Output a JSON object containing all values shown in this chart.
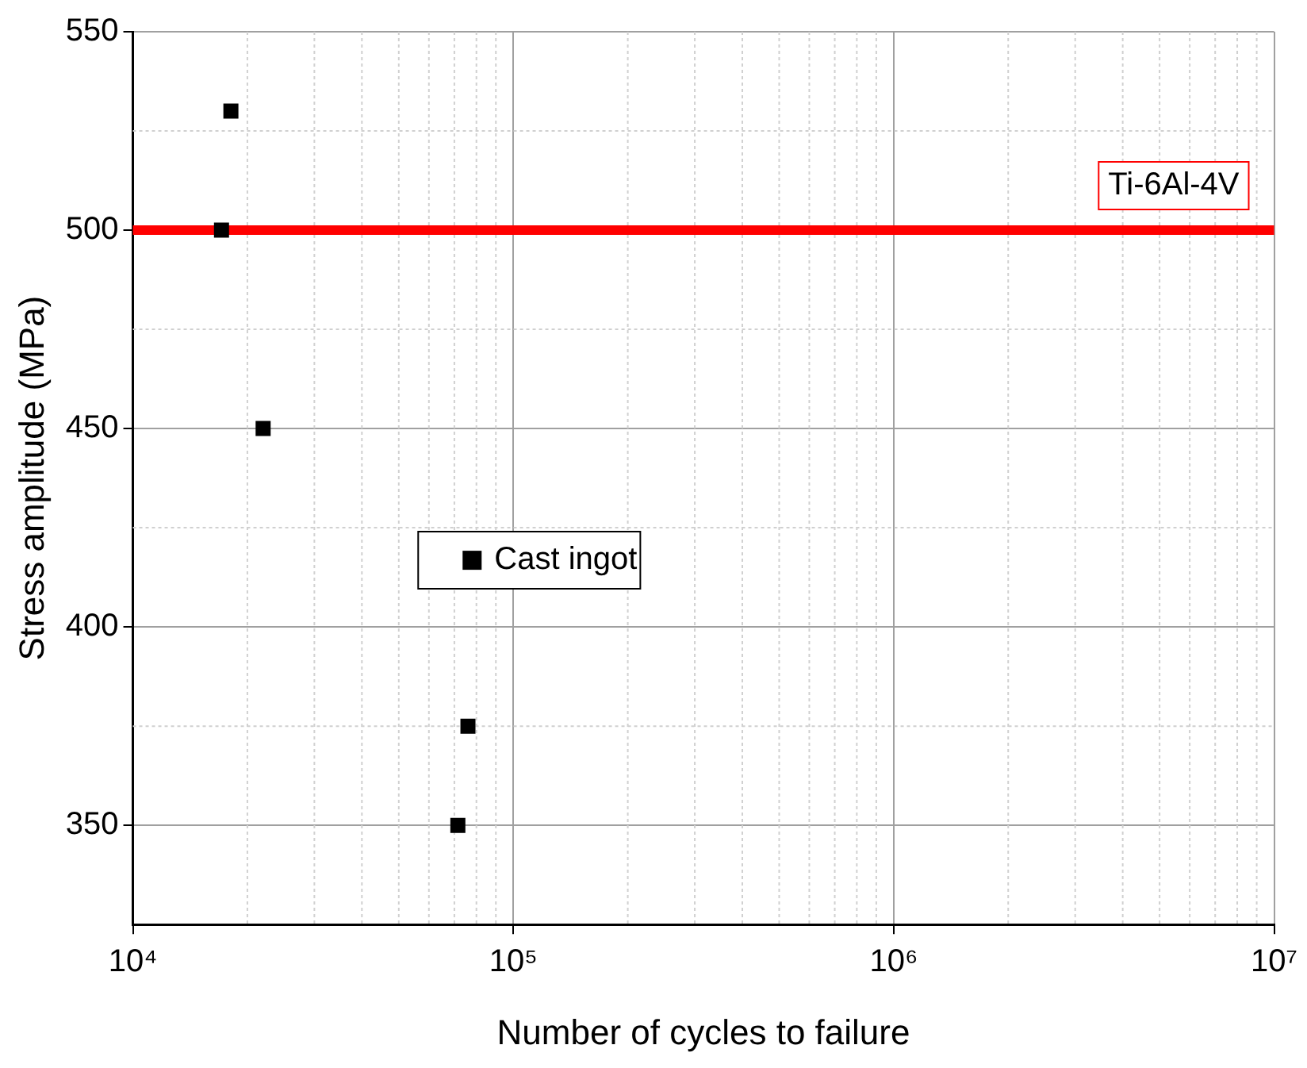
{
  "chart_data": {
    "type": "scatter",
    "xlabel": "Number of cycles to failure",
    "ylabel": "Stress amplitude (MPa)",
    "log": "x",
    "xlim": [
      10000,
      10000000
    ],
    "xticks": [
      {
        "value": 10000,
        "label": "10⁴"
      },
      {
        "value": 100000,
        "label": "10⁵"
      },
      {
        "value": 1000000,
        "label": "10⁶"
      },
      {
        "value": 10000000,
        "label": "10⁷"
      }
    ],
    "ylim": [
      325,
      550
    ],
    "yticks": [
      350,
      400,
      450,
      500,
      550
    ],
    "grid": true,
    "legend": "center",
    "marker": "square",
    "series": [
      {
        "name": "Cast ingot",
        "color": "#000000",
        "x": [
          18100,
          17100,
          22000,
          76000,
          71500
        ],
        "values": [
          530,
          500,
          450,
          375,
          350
        ]
      }
    ],
    "ref_lines": [
      {
        "axis": "y",
        "value": 500,
        "label": "Ti-6Al-4V",
        "color": "#ff0000"
      }
    ]
  }
}
